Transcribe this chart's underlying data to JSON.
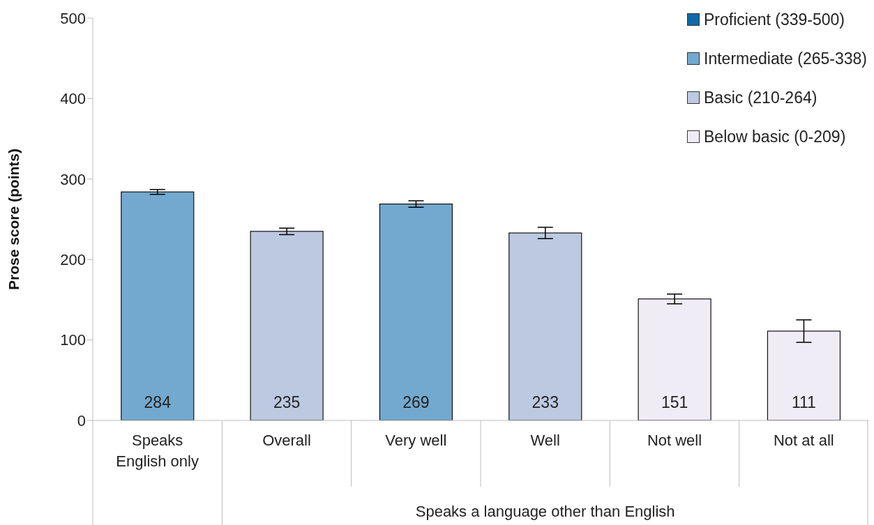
{
  "chart_data": {
    "type": "bar",
    "ylabel": "Prose score (points)",
    "categories": [
      "Speaks English only",
      "Overall",
      "Very well",
      "Well",
      "Not well",
      "Not at all"
    ],
    "annotations": [
      "Speaks a language other than English"
    ],
    "stacked": true,
    "series": [
      {
        "name": "Proficient (339-500)",
        "color": "#1068a8",
        "values": [
          null,
          null,
          null,
          null,
          null,
          null
        ],
        "errors": [
          null,
          null,
          null,
          null,
          null,
          null
        ]
      },
      {
        "name": "Intermediate (265-338)",
        "color": "#73a9cf",
        "values": [
          284,
          null,
          269,
          null,
          null,
          null
        ],
        "errors": [
          3,
          null,
          4,
          null,
          null,
          null
        ]
      },
      {
        "name": "Basic (210-264)",
        "color": "#bcc9e1",
        "values": [
          null,
          235,
          null,
          233,
          null,
          null
        ],
        "errors": [
          null,
          4,
          null,
          7,
          null,
          null
        ]
      },
      {
        "name": "Below basic (0-209)",
        "color": "#efecf5",
        "values": [
          null,
          null,
          null,
          null,
          151,
          111
        ],
        "errors": [
          null,
          null,
          null,
          null,
          6,
          14
        ]
      }
    ],
    "ylim": [
      0,
      500
    ],
    "yticks": [
      0,
      100,
      200,
      300,
      400,
      500
    ],
    "data_labels": true,
    "grid": false,
    "legend": "top right"
  }
}
